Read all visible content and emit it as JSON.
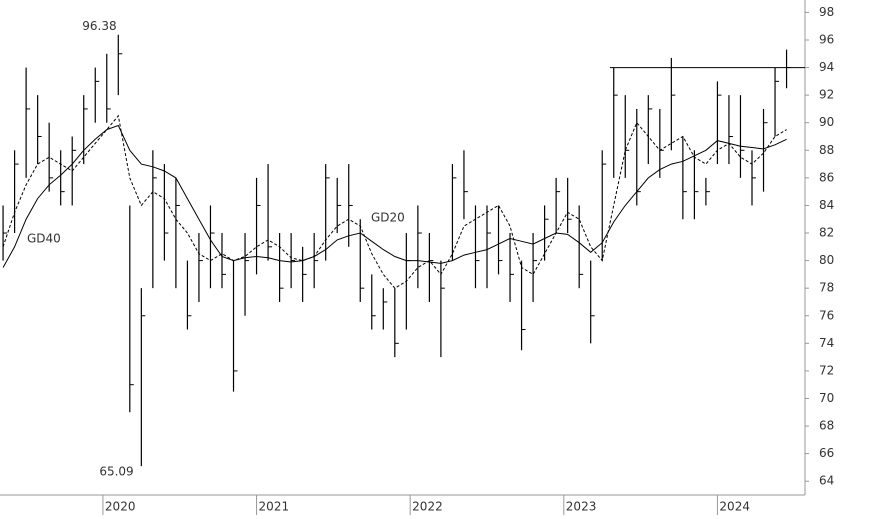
{
  "chart_data": {
    "type": "ohlc",
    "x": [
      2019.35,
      2019.425,
      2019.5,
      2019.575,
      2019.65,
      2019.725,
      2019.8,
      2019.875,
      2019.95,
      2020.025,
      2020.1,
      2020.175,
      2020.25,
      2020.325,
      2020.4,
      2020.475,
      2020.55,
      2020.625,
      2020.7,
      2020.775,
      2020.85,
      2020.925,
      2021.0,
      2021.075,
      2021.15,
      2021.225,
      2021.3,
      2021.375,
      2021.45,
      2021.525,
      2021.6,
      2021.675,
      2021.75,
      2021.825,
      2021.9,
      2021.975,
      2022.05,
      2022.125,
      2022.2,
      2022.275,
      2022.35,
      2022.425,
      2022.5,
      2022.575,
      2022.65,
      2022.725,
      2022.8,
      2022.875,
      2022.95,
      2023.025,
      2023.1,
      2023.175,
      2023.25,
      2023.325,
      2023.4,
      2023.475,
      2023.55,
      2023.625,
      2023.7,
      2023.775,
      2023.85,
      2023.925,
      2024.0,
      2024.075,
      2024.15,
      2024.225,
      2024.3,
      2024.375,
      2024.45
    ],
    "high": [
      84,
      88,
      94,
      92,
      90,
      88,
      89,
      92,
      94,
      95,
      96.38,
      84,
      78,
      88,
      87,
      86,
      80,
      82,
      84,
      82,
      80,
      82,
      86,
      87,
      82,
      82,
      81,
      82,
      87,
      86,
      87,
      83,
      79,
      78,
      78,
      82,
      84,
      82,
      80,
      87,
      88,
      84,
      84,
      84,
      82,
      80,
      82,
      84,
      86,
      86,
      84,
      80,
      88,
      94,
      92,
      91,
      92,
      91,
      94.7,
      89,
      88,
      86,
      93,
      92,
      92,
      88,
      91,
      94,
      95.3
    ],
    "low": [
      80,
      82,
      86,
      87,
      85,
      84,
      84,
      87,
      90,
      90,
      92,
      69,
      65.09,
      78,
      80,
      78,
      75,
      77,
      78,
      78,
      70.5,
      76,
      79,
      80,
      77,
      78,
      77,
      78,
      80,
      82,
      81,
      77,
      75,
      75,
      73,
      75,
      78,
      77,
      73,
      80,
      83,
      78,
      78,
      79,
      77,
      73.5,
      77,
      80,
      82,
      82,
      78,
      74,
      80,
      86,
      86,
      84,
      87,
      86,
      88,
      83,
      83,
      84,
      87,
      87,
      86,
      84,
      85,
      89,
      92.5
    ],
    "close": [
      82,
      87,
      91,
      89,
      86,
      85,
      88,
      91,
      93,
      91,
      95,
      71,
      76,
      86,
      82,
      84,
      76,
      80,
      82,
      79,
      72,
      80,
      84,
      81,
      78,
      80,
      79,
      80,
      86,
      84,
      84,
      78,
      76,
      77,
      74,
      80,
      82,
      80,
      78,
      86,
      85,
      80,
      82,
      80,
      79,
      75,
      80,
      83,
      85,
      83,
      79,
      76,
      87,
      92,
      88,
      85,
      91,
      88,
      92,
      85,
      85,
      85,
      92,
      89,
      88,
      86,
      90,
      93,
      94
    ],
    "series": [
      {
        "name": "GD20",
        "color": "#000000",
        "dash": true,
        "values": [
          81,
          83.5,
          85.5,
          87,
          87.5,
          87,
          86.5,
          87.5,
          88.5,
          89.5,
          90.5,
          86,
          84,
          85,
          84.5,
          83,
          82,
          80.5,
          80,
          80.5,
          80,
          80.3,
          81,
          81.5,
          81,
          80.2,
          80,
          80.3,
          81.5,
          82.5,
          83,
          82.5,
          80.5,
          79,
          78,
          78.5,
          79.5,
          80,
          79,
          80.5,
          82.5,
          83,
          83.5,
          84,
          82.5,
          79.5,
          79,
          80.5,
          82,
          83.5,
          83,
          81,
          80,
          84,
          88,
          90,
          89,
          88,
          88.5,
          89,
          87.5,
          87,
          88,
          88.5,
          87.5,
          87,
          87.8,
          89,
          89.5
        ]
      },
      {
        "name": "GD40",
        "color": "#000000",
        "dash": false,
        "values": [
          79.5,
          81,
          83,
          84.5,
          85.5,
          86.2,
          87,
          88,
          88.8,
          89.5,
          89.8,
          88,
          87,
          86.8,
          86.5,
          86,
          84.5,
          83,
          81.5,
          80.3,
          80,
          80.2,
          80.3,
          80.2,
          80,
          79.9,
          80,
          80.3,
          80.8,
          81.5,
          81.8,
          82,
          81.4,
          80.8,
          80.3,
          80,
          80,
          79.9,
          79.8,
          80,
          80.4,
          80.6,
          80.8,
          81.2,
          81.6,
          81.4,
          81.2,
          81.6,
          82,
          81.9,
          81.3,
          80.6,
          81.3,
          82.8,
          84,
          85,
          86,
          86.6,
          87,
          87.2,
          87.6,
          88,
          88.7,
          88.5,
          88.3,
          88.2,
          88.1,
          88.4,
          88.8
        ]
      }
    ],
    "resistance": {
      "value": 94,
      "from_x": 2023.3
    },
    "xlim": [
      2019.33,
      2024.57
    ],
    "xticks": [
      2020,
      2021,
      2022,
      2023,
      2024
    ],
    "ylim": [
      63,
      98.9
    ],
    "yticks": [
      64,
      66,
      68,
      70,
      72,
      74,
      76,
      78,
      80,
      82,
      84,
      86,
      88,
      90,
      92,
      94,
      96,
      98
    ]
  }
}
